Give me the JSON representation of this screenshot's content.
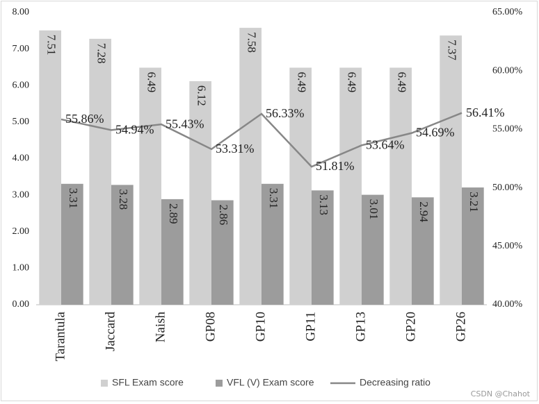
{
  "chart_data": {
    "type": "bar-line",
    "categories": [
      "Tarantula",
      "Jaccard",
      "Naish",
      "GP08",
      "GP10",
      "GP11",
      "GP13",
      "GP20",
      "GP26"
    ],
    "series": [
      {
        "name": "SFL Exam score",
        "color": "#d0d0d0",
        "type": "bar",
        "values": [
          7.51,
          7.28,
          6.49,
          6.12,
          7.58,
          6.49,
          6.49,
          6.49,
          7.37
        ]
      },
      {
        "name": "VFL (V) Exam score",
        "color": "#9c9c9c",
        "type": "bar",
        "values": [
          3.31,
          3.28,
          2.89,
          2.86,
          3.31,
          3.13,
          3.01,
          2.94,
          3.21
        ]
      },
      {
        "name": "Decreasing ratio",
        "color": "#878787",
        "type": "line",
        "axis": "y2",
        "values": [
          55.86,
          54.94,
          55.43,
          53.31,
          56.33,
          51.81,
          53.64,
          54.69,
          56.41
        ],
        "value_labels": [
          "55.86%",
          "54.94%",
          "55.43%",
          "53.31%",
          "56.33%",
          "51.81%",
          "53.64%",
          "54.69%",
          "56.41%"
        ]
      }
    ],
    "ylim": [
      0,
      8
    ],
    "yticks": [
      {
        "value": 0,
        "label": "0.00"
      },
      {
        "value": 1,
        "label": "1.00"
      },
      {
        "value": 2,
        "label": "2.00"
      },
      {
        "value": 3,
        "label": "3.00"
      },
      {
        "value": 4,
        "label": "4.00"
      },
      {
        "value": 5,
        "label": "5.00"
      },
      {
        "value": 6,
        "label": "6.00"
      },
      {
        "value": 7,
        "label": "7.00"
      },
      {
        "value": 8,
        "label": "8.00"
      }
    ],
    "y2lim": [
      40,
      65
    ],
    "y2ticks": [
      {
        "value": 40,
        "label": "40.00%"
      },
      {
        "value": 45,
        "label": "45.00%"
      },
      {
        "value": 50,
        "label": "50.00%"
      },
      {
        "value": 55,
        "label": "55.00%"
      },
      {
        "value": 60,
        "label": "60.00%"
      },
      {
        "value": 65,
        "label": "65.00%"
      }
    ],
    "grid": false,
    "legend": "bottom"
  },
  "watermark": "CSDN @Chahot"
}
